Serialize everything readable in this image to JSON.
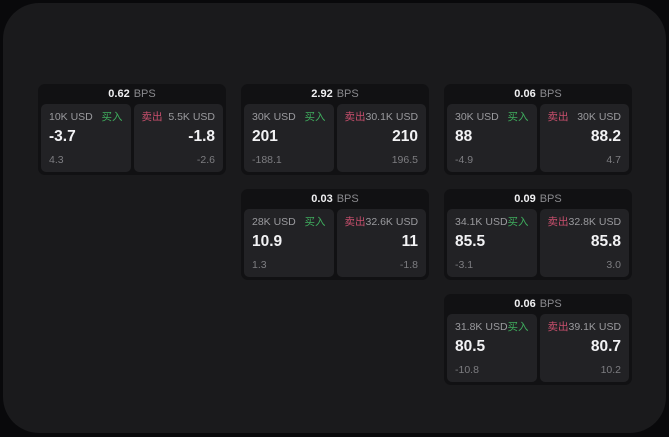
{
  "theme": {
    "page_bg": "#09090b",
    "panel_bg": "#1a1a1c",
    "card_bg": "#111113",
    "cell_bg": "#222225",
    "text_primary": "#f2f2f4",
    "text_muted": "#9a9a9e",
    "text_dim": "#7d7d81",
    "buy_color": "#3fae5e",
    "sell_color": "#c94f6d"
  },
  "labels": {
    "bps_unit": "BPS",
    "buy": "买入",
    "sell": "卖出"
  },
  "cards": [
    {
      "bps_value": "0.62",
      "buy": {
        "notional": "10K USD",
        "price": "-3.7",
        "delta": "4.3"
      },
      "sell": {
        "notional": "5.5K USD",
        "price": "-1.8",
        "delta": "-2.6"
      }
    },
    {
      "bps_value": "2.92",
      "buy": {
        "notional": "30K USD",
        "price": "201",
        "delta": "-188.1"
      },
      "sell": {
        "notional": "30.1K USD",
        "price": "210",
        "delta": "196.5"
      }
    },
    {
      "bps_value": "0.06",
      "buy": {
        "notional": "30K USD",
        "price": "88",
        "delta": "-4.9"
      },
      "sell": {
        "notional": "30K USD",
        "price": "88.2",
        "delta": "4.7"
      }
    },
    {
      "bps_value": "0.03",
      "buy": {
        "notional": "28K USD",
        "price": "10.9",
        "delta": "1.3"
      },
      "sell": {
        "notional": "32.6K USD",
        "price": "11",
        "delta": "-1.8"
      }
    },
    {
      "bps_value": "0.09",
      "buy": {
        "notional": "34.1K USD",
        "price": "85.5",
        "delta": "-3.1"
      },
      "sell": {
        "notional": "32.8K USD",
        "price": "85.8",
        "delta": "3.0"
      }
    },
    {
      "bps_value": "0.06",
      "buy": {
        "notional": "31.8K USD",
        "price": "80.5",
        "delta": "-10.8"
      },
      "sell": {
        "notional": "39.1K USD",
        "price": "80.7",
        "delta": "10.2"
      }
    }
  ]
}
